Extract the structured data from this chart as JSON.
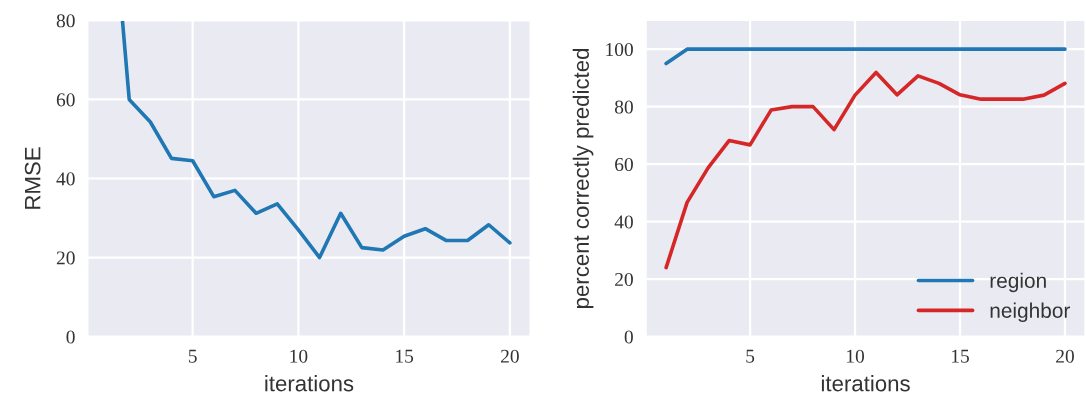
{
  "chart_data": [
    {
      "type": "line",
      "xlabel": "iterations",
      "ylabel": "RMSE",
      "series": [
        {
          "color": "#1f77b4",
          "x": [
            1.68,
            2,
            3,
            4,
            5,
            6,
            7,
            8,
            9,
            10,
            11,
            12,
            13,
            14,
            15,
            16,
            17,
            18,
            19,
            20
          ],
          "values": [
            80,
            60.0,
            54.3,
            45.1,
            44.5,
            35.4,
            37.0,
            31.2,
            33.6,
            27.0,
            20.0,
            31.2,
            22.5,
            21.9,
            25.4,
            27.3,
            24.3,
            24.3,
            28.3,
            23.7
          ]
        }
      ],
      "xlim": [
        0.05,
        20.95
      ],
      "ylim": [
        0,
        80
      ],
      "xticks": [
        5,
        10,
        15,
        20
      ],
      "yticks": [
        0,
        20,
        40,
        60,
        80
      ],
      "grid": true
    },
    {
      "type": "line",
      "xlabel": "iterations",
      "ylabel": "percent correctly predicted",
      "x": [
        1,
        2,
        3,
        4,
        5,
        6,
        7,
        8,
        9,
        10,
        11,
        12,
        13,
        14,
        15,
        16,
        17,
        18,
        19,
        20
      ],
      "series": [
        {
          "name": "region",
          "color": "#1f77b4",
          "values": [
            95,
            100,
            100,
            100,
            100,
            100,
            100,
            100,
            100,
            100,
            100,
            100,
            100,
            100,
            100,
            100,
            100,
            100,
            100,
            100
          ]
        },
        {
          "name": "neighbor",
          "color": "#d62728",
          "values": [
            24.0,
            46.7,
            58.7,
            68.2,
            66.7,
            78.8,
            80.0,
            80.0,
            72.0,
            84.0,
            91.9,
            84.1,
            90.7,
            88.1,
            84.1,
            82.6,
            82.6,
            82.6,
            84.0,
            88.1
          ]
        }
      ],
      "xlim": [
        0.05,
        20.95
      ],
      "ylim": [
        0,
        110
      ],
      "xticks": [
        5,
        10,
        15,
        20
      ],
      "yticks": [
        0,
        20,
        40,
        60,
        80,
        100
      ],
      "grid": true,
      "legend": "bottom right"
    }
  ]
}
